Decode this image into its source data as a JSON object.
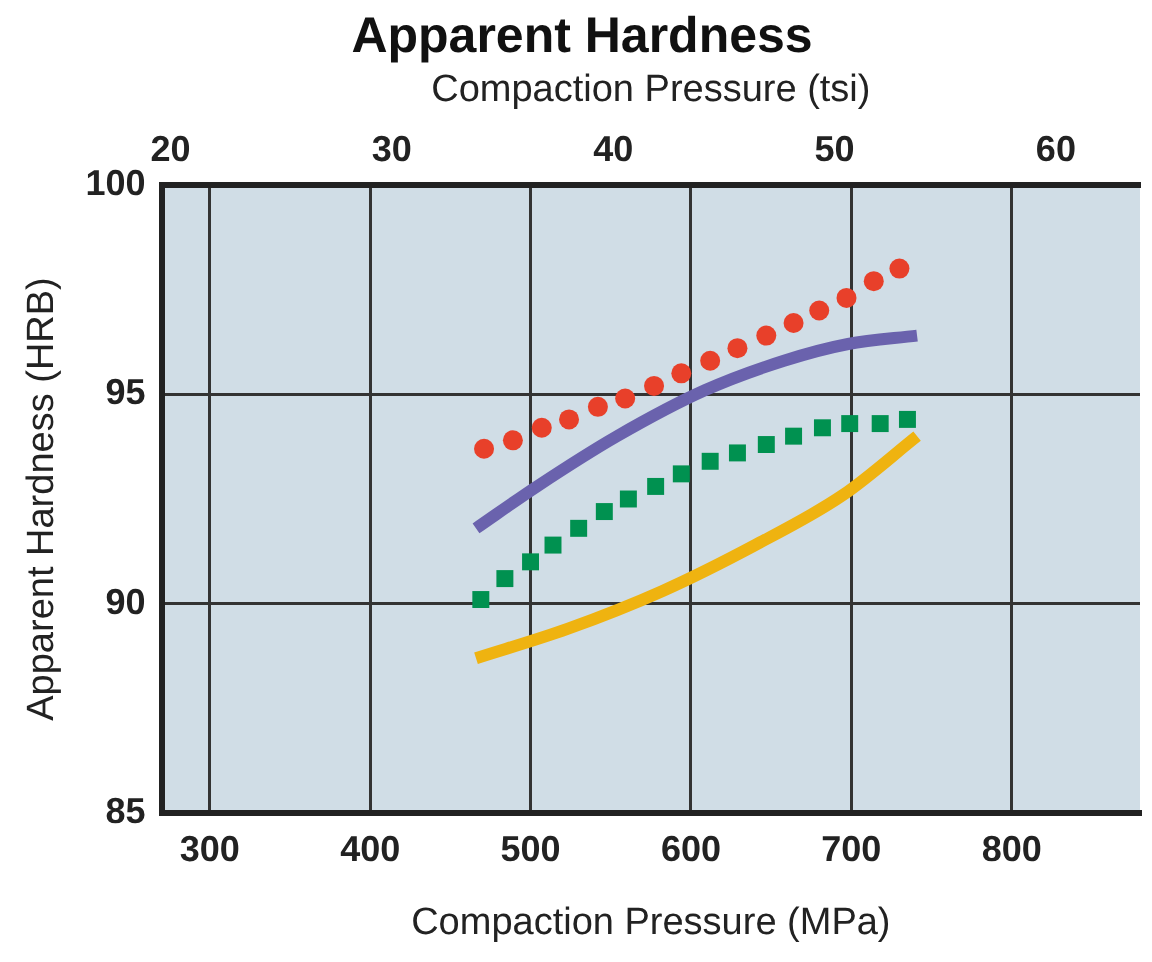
{
  "chart_data": {
    "type": "line",
    "title": "Apparent Hardness",
    "xlabel": "Compaction Pressure (MPa)",
    "x2label": "Compaction Pressure (tsi)",
    "ylabel": "Apparent Hardness (HRB)",
    "xlim": [
      270,
      880
    ],
    "xticks": [
      300,
      400,
      500,
      600,
      700,
      800
    ],
    "x2lim": [
      19.6,
      63.8
    ],
    "x2ticks": [
      20,
      30,
      40,
      50,
      60
    ],
    "ylim": [
      85,
      100
    ],
    "yticks": [
      85,
      90,
      95,
      100
    ],
    "grid": true,
    "series": [
      {
        "type": "scatter",
        "color": "#e8402a",
        "marker": "circle",
        "x": [
          471,
          489,
          507,
          524,
          542,
          559,
          577,
          594,
          612,
          629,
          647,
          664,
          680,
          697,
          714,
          730
        ],
        "values": [
          93.7,
          93.9,
          94.2,
          94.4,
          94.7,
          94.9,
          95.2,
          95.5,
          95.8,
          96.1,
          96.4,
          96.7,
          97.0,
          97.3,
          97.7,
          98.0
        ]
      },
      {
        "color": "#6a62ad",
        "line_style": "solid",
        "x": [
          466,
          504,
          554,
          609,
          658,
          698,
          741
        ],
        "values": [
          91.8,
          92.8,
          94.0,
          95.1,
          95.8,
          96.2,
          96.4
        ]
      },
      {
        "type": "scatter",
        "color": "#009150",
        "marker": "square",
        "x": [
          469,
          484,
          500,
          514,
          530,
          546,
          561,
          578,
          594,
          612,
          629,
          647,
          664,
          682,
          699,
          718,
          735
        ],
        "values": [
          90.1,
          90.6,
          91.0,
          91.4,
          91.8,
          92.2,
          92.5,
          92.8,
          93.1,
          93.4,
          93.6,
          93.8,
          94.0,
          94.2,
          94.3,
          94.3,
          94.4
        ]
      },
      {
        "color": "#efb310",
        "line_style": "solid",
        "x": [
          466,
          523,
          582,
          640,
          695,
          741
        ],
        "values": [
          88.7,
          89.4,
          90.3,
          91.4,
          92.6,
          94.0
        ]
      }
    ]
  }
}
